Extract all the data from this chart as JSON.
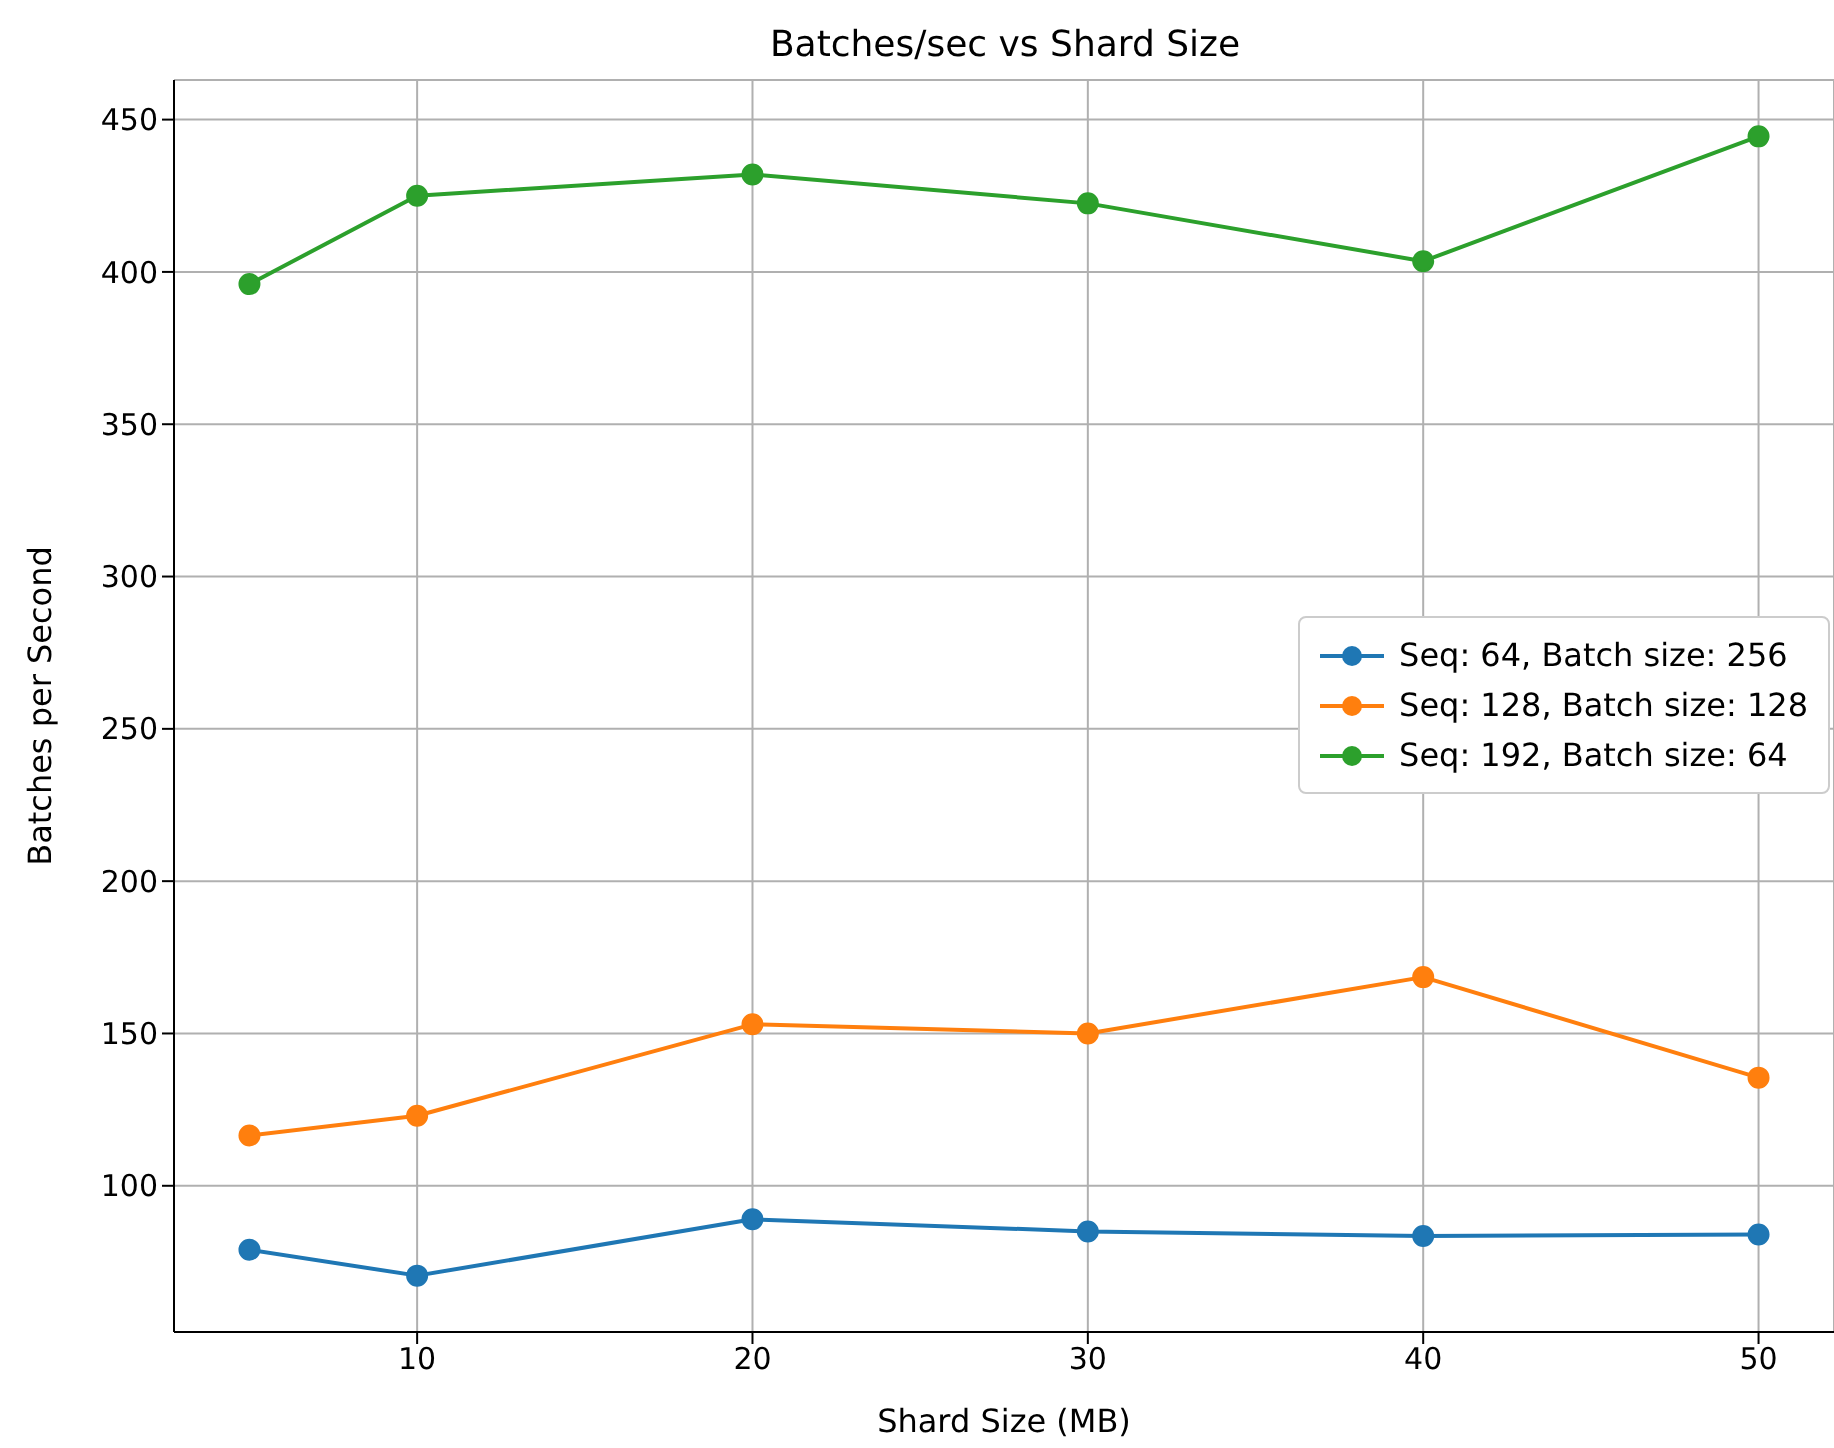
{
  "chart_data": {
    "type": "line",
    "title": "Batches/sec vs Shard Size",
    "xlabel": "Shard Size (MB)",
    "ylabel": "Batches per Second",
    "x": [
      5,
      10,
      20,
      30,
      40,
      50
    ],
    "series": [
      {
        "name": "Seq: 64, Batch size: 256",
        "color": "#1f77b4",
        "values": [
          79,
          70.5,
          89,
          85,
          83.5,
          84
        ]
      },
      {
        "name": "Seq: 128, Batch size: 128",
        "color": "#ff7f0e",
        "values": [
          116.5,
          123,
          153,
          150,
          168.5,
          135.5
        ]
      },
      {
        "name": "Seq: 192, Batch size: 64",
        "color": "#2ca02c",
        "values": [
          396,
          425,
          432,
          422.5,
          403.5,
          444.5
        ]
      }
    ],
    "xlim": [
      2.75,
      52.25
    ],
    "xticks": [
      10,
      20,
      30,
      40,
      50
    ],
    "ylim": [
      52,
      463
    ],
    "yticks": [
      100,
      150,
      200,
      250,
      300,
      350,
      400,
      450
    ],
    "grid": true,
    "legend": "right",
    "marker": "circle",
    "line_style": "solid"
  }
}
